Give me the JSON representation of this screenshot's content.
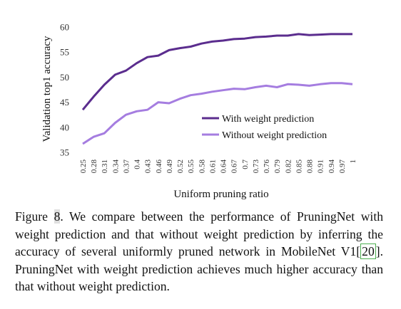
{
  "chart_data": {
    "type": "line",
    "xlabel": "Uniform pruning ratio",
    "ylabel": "Validation top1 accuracy",
    "ylim": [
      35,
      60
    ],
    "yticks": [
      35,
      40,
      45,
      50,
      55,
      60
    ],
    "grid": false,
    "legend": "center-right",
    "categories": [
      "0.25",
      "0.28",
      "0.31",
      "0.34",
      "0.37",
      "0.4",
      "0.43",
      "0.46",
      "0.49",
      "0.52",
      "0.55",
      "0.58",
      "0.61",
      "0.64",
      "0.67",
      "0.7",
      "0.73",
      "0.76",
      "0.79",
      "0.82",
      "0.85",
      "0.88",
      "0.91",
      "0.94",
      "0.97",
      "1"
    ],
    "series": [
      {
        "name": "With weight prediction",
        "color": "#5b2d8e",
        "values": [
          43.5,
          46.1,
          48.5,
          50.5,
          51.3,
          52.8,
          54.0,
          54.3,
          55.4,
          55.8,
          56.1,
          56.7,
          57.1,
          57.3,
          57.6,
          57.7,
          58.0,
          58.1,
          58.3,
          58.3,
          58.6,
          58.4,
          58.5,
          58.6,
          58.6,
          58.6
        ]
      },
      {
        "name": "Without weight prediction",
        "color": "#a57de0",
        "values": [
          36.7,
          38.1,
          38.8,
          40.9,
          42.5,
          43.2,
          43.5,
          45.0,
          44.8,
          45.7,
          46.4,
          46.7,
          47.1,
          47.4,
          47.7,
          47.6,
          48.0,
          48.3,
          48.0,
          48.6,
          48.5,
          48.3,
          48.6,
          48.8,
          48.8,
          48.6
        ]
      }
    ]
  },
  "caption": {
    "prefix": "Figure ",
    "number": "8",
    "part1": ". We compare between the performance of PruningNet with weight prediction and that without weight prediction by inferring the accuracy of several uniformly pruned network in MobileNet V1",
    "cite_open": "[",
    "cite_num": "20",
    "cite_close": "]",
    "part2": ". PruningNet with weight prediction achieves much higher accuracy than that without weight prediction."
  }
}
